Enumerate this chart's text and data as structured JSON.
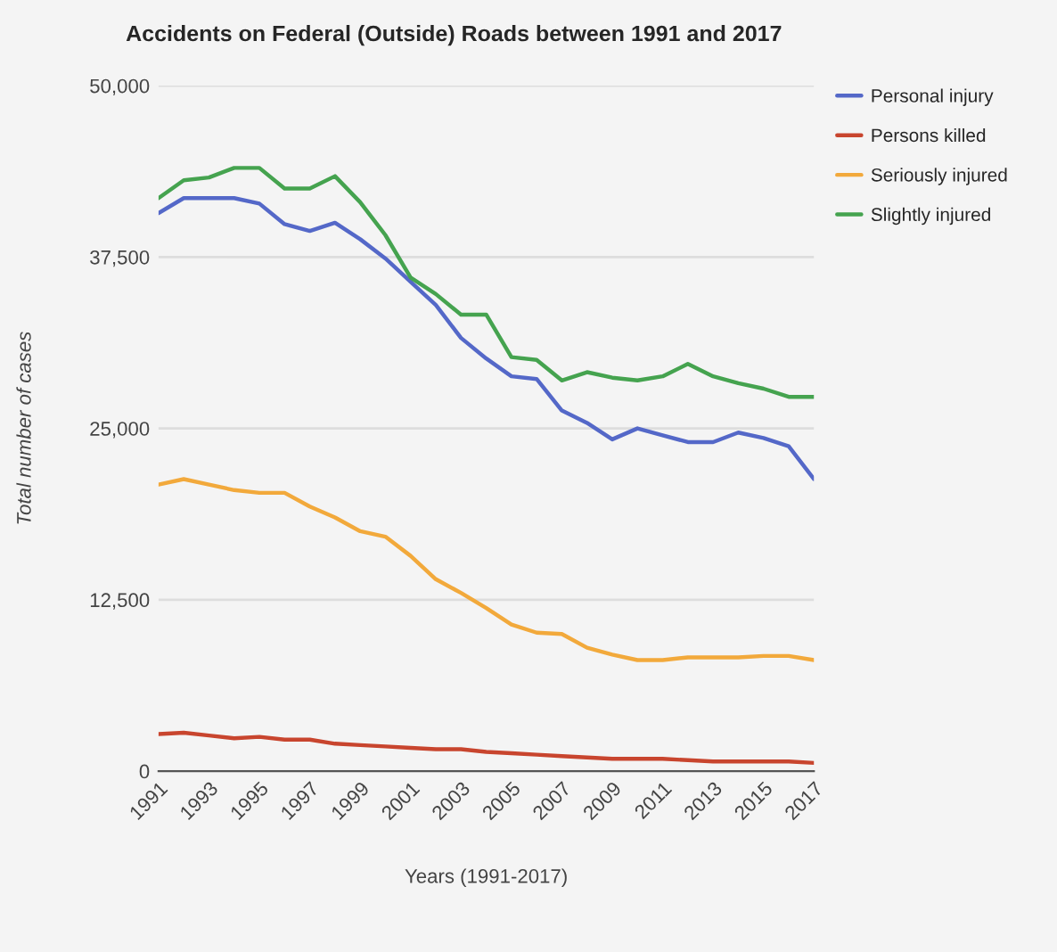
{
  "chart_data": {
    "type": "line",
    "title": "Accidents on Federal (Outside) Roads between 1991 and 2017",
    "xlabel": "Years (1991-2017)",
    "ylabel": "Total number of cases",
    "x": [
      1991,
      1992,
      1993,
      1994,
      1995,
      1996,
      1997,
      1998,
      1999,
      2000,
      2001,
      2002,
      2003,
      2004,
      2005,
      2006,
      2007,
      2008,
      2009,
      2010,
      2011,
      2012,
      2013,
      2014,
      2015,
      2016,
      2017
    ],
    "series": [
      {
        "name": "Personal injury",
        "color": "#5468c8",
        "values": [
          40700,
          41800,
          41800,
          41800,
          41400,
          39900,
          39400,
          40000,
          38800,
          37400,
          35700,
          34000,
          31600,
          30100,
          28800,
          28600,
          26300,
          25400,
          24200,
          25000,
          24500,
          24000,
          24000,
          24700,
          24300,
          23700,
          21300
        ]
      },
      {
        "name": "Persons killed",
        "color": "#c8452e",
        "values": [
          2700,
          2800,
          2600,
          2400,
          2500,
          2300,
          2300,
          2000,
          1900,
          1800,
          1700,
          1600,
          1600,
          1400,
          1300,
          1200,
          1100,
          1000,
          900,
          900,
          900,
          800,
          700,
          700,
          700,
          700,
          600
        ]
      },
      {
        "name": "Seriously injured",
        "color": "#f2a93b",
        "values": [
          20900,
          21300,
          20900,
          20500,
          20300,
          20300,
          19300,
          18500,
          17500,
          17100,
          15700,
          14000,
          13000,
          11900,
          10700,
          10100,
          10000,
          9000,
          8500,
          8100,
          8100,
          8300,
          8300,
          8300,
          8400,
          8400,
          8100
        ]
      },
      {
        "name": "Slightly injured",
        "color": "#45a34f",
        "values": [
          41800,
          43100,
          43300,
          44000,
          44000,
          42500,
          42500,
          43400,
          41500,
          39100,
          36000,
          34800,
          33300,
          33300,
          30200,
          30000,
          28500,
          29100,
          28700,
          28500,
          28800,
          29700,
          28800,
          28300,
          27900,
          27300,
          27300
        ]
      }
    ],
    "xlim": [
      1991,
      2017
    ],
    "xticks": [
      1991,
      1993,
      1995,
      1997,
      1999,
      2001,
      2003,
      2005,
      2007,
      2009,
      2011,
      2013,
      2015,
      2017
    ],
    "ylim": [
      0,
      50000
    ],
    "yticks": [
      {
        "value": 0,
        "label": "0"
      },
      {
        "value": 12500,
        "label": "12,500"
      },
      {
        "value": 25000,
        "label": "25,000"
      },
      {
        "value": 37500,
        "label": "37,500"
      },
      {
        "value": 50000,
        "label": "50,000"
      }
    ],
    "grid": "y",
    "legend": "right",
    "marker": "none",
    "line_style": "solid"
  }
}
